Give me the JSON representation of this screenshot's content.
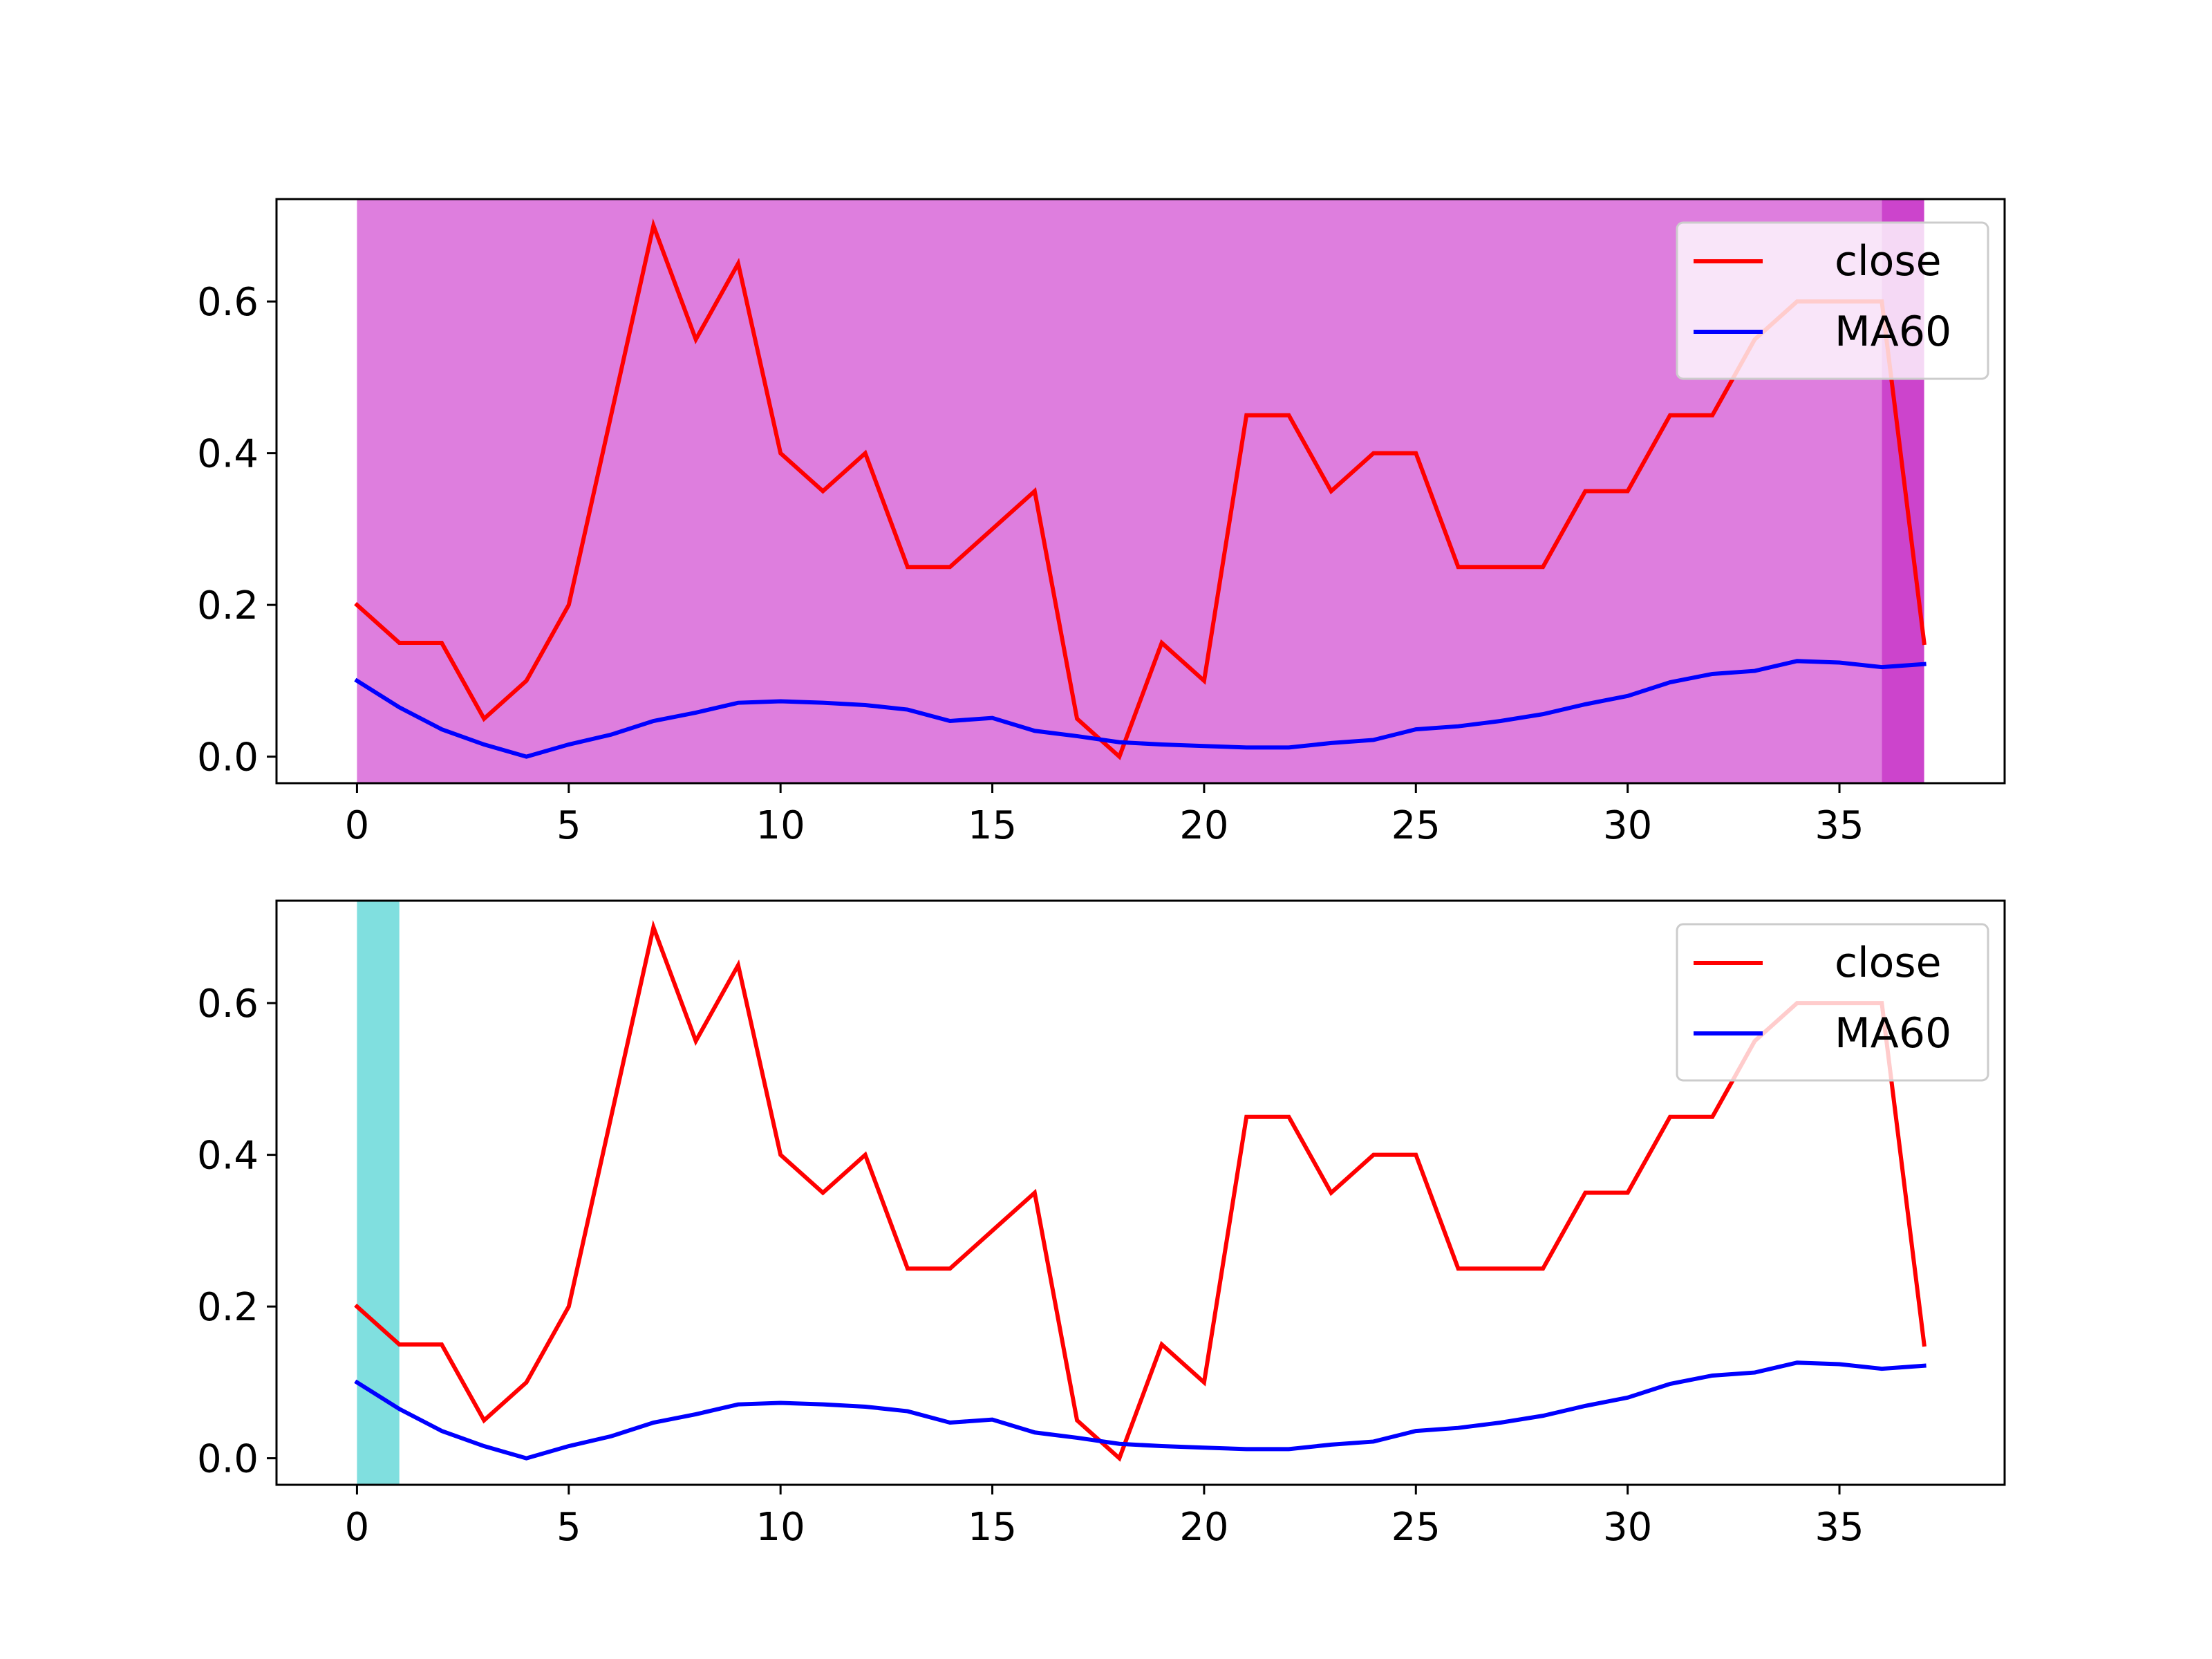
{
  "chart_data": [
    {
      "type": "line",
      "x": [
        0,
        1,
        2,
        3,
        4,
        5,
        6,
        7,
        8,
        9,
        10,
        11,
        12,
        13,
        14,
        15,
        16,
        17,
        18,
        19,
        20,
        21,
        22,
        23,
        24,
        25,
        26,
        27,
        28,
        29,
        30,
        31,
        32,
        33,
        34,
        35,
        36,
        37
      ],
      "series": [
        {
          "name": "close",
          "color": "#ff0000",
          "values": [
            0.2,
            0.15,
            0.15,
            0.05,
            0.1,
            0.2,
            0.45,
            0.7,
            0.55,
            0.65,
            0.4,
            0.35,
            0.4,
            0.25,
            0.25,
            0.3,
            0.35,
            0.05,
            0.0,
            0.15,
            0.1,
            0.45,
            0.45,
            0.35,
            0.4,
            0.4,
            0.25,
            0.25,
            0.25,
            0.35,
            0.35,
            0.45,
            0.45,
            0.55,
            0.6,
            0.6,
            0.6,
            0.15
          ]
        },
        {
          "name": "MA60",
          "color": "#0000ff",
          "values": [
            0.1,
            0.065,
            0.036,
            0.016,
            0.0,
            0.016,
            0.029,
            0.047,
            0.058,
            0.071,
            0.073,
            0.071,
            0.068,
            0.062,
            0.047,
            0.051,
            0.034,
            0.027,
            0.019,
            0.016,
            0.014,
            0.012,
            0.012,
            0.018,
            0.022,
            0.036,
            0.04,
            0.047,
            0.056,
            0.069,
            0.08,
            0.098,
            0.109,
            0.113,
            0.126,
            0.124,
            0.118,
            0.122
          ]
        }
      ],
      "spans": [
        {
          "from": 0,
          "to": 36,
          "color": "#de7ede"
        },
        {
          "from": 36,
          "to": 37,
          "color": "#cc44cc"
        }
      ],
      "xlim": [
        -1.9,
        38.9
      ],
      "ylim": [
        -0.035,
        0.735
      ],
      "xticks": [
        "0",
        "5",
        "10",
        "15",
        "20",
        "25",
        "30",
        "35"
      ],
      "yticks": [
        "0.0",
        "0.2",
        "0.4",
        "0.6"
      ],
      "legend": "top-right",
      "grid": false
    },
    {
      "type": "line",
      "x": [
        0,
        1,
        2,
        3,
        4,
        5,
        6,
        7,
        8,
        9,
        10,
        11,
        12,
        13,
        14,
        15,
        16,
        17,
        18,
        19,
        20,
        21,
        22,
        23,
        24,
        25,
        26,
        27,
        28,
        29,
        30,
        31,
        32,
        33,
        34,
        35,
        36,
        37
      ],
      "series": [
        {
          "name": "close",
          "color": "#ff0000",
          "values": [
            0.2,
            0.15,
            0.15,
            0.05,
            0.1,
            0.2,
            0.45,
            0.7,
            0.55,
            0.65,
            0.4,
            0.35,
            0.4,
            0.25,
            0.25,
            0.3,
            0.35,
            0.05,
            0.0,
            0.15,
            0.1,
            0.45,
            0.45,
            0.35,
            0.4,
            0.4,
            0.25,
            0.25,
            0.25,
            0.35,
            0.35,
            0.45,
            0.45,
            0.55,
            0.6,
            0.6,
            0.6,
            0.15
          ]
        },
        {
          "name": "MA60",
          "color": "#0000ff",
          "values": [
            0.1,
            0.065,
            0.036,
            0.016,
            0.0,
            0.016,
            0.029,
            0.047,
            0.058,
            0.071,
            0.073,
            0.071,
            0.068,
            0.062,
            0.047,
            0.051,
            0.034,
            0.027,
            0.019,
            0.016,
            0.014,
            0.012,
            0.012,
            0.018,
            0.022,
            0.036,
            0.04,
            0.047,
            0.056,
            0.069,
            0.08,
            0.098,
            0.109,
            0.113,
            0.126,
            0.124,
            0.118,
            0.122
          ]
        }
      ],
      "spans": [
        {
          "from": 0,
          "to": 1,
          "color": "#80dfdf"
        }
      ],
      "xlim": [
        -1.9,
        38.9
      ],
      "ylim": [
        -0.035,
        0.735
      ],
      "xticks": [
        "0",
        "5",
        "10",
        "15",
        "20",
        "25",
        "30",
        "35"
      ],
      "yticks": [
        "0.0",
        "0.2",
        "0.4",
        "0.6"
      ],
      "legend": "top-right",
      "grid": false
    }
  ]
}
